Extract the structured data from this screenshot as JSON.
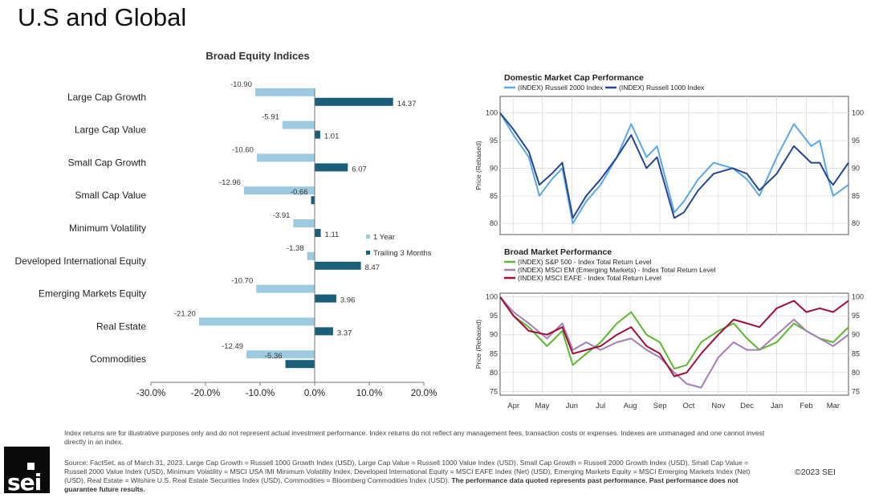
{
  "page": {
    "title": "U.S and Global",
    "disclaimer": "Index returns are for illustrative purposes only and do not represent actual investment performance. Index returns do not reflect any management fees, transaction costs or expenses. Indexes are unmanaged and one cannot invest directly in an index.",
    "source_text": "Source: FactSet, as of March 31, 2023. Large Cap Growth = Russell 1000 Growth Index (USD), Large Cap Value = Russell 1000 Value Index (USD), Small Cap Growth = Russell 2000 Growth Index (USD), Small Cap Value = Russell 2000 Value Index (USD), Minimum Volatility = MSCI USA IMI Minimum Volatility Index, Developed International Equity = MSCI EAFE Index (Net) (USD), Emerging Markets Equity = MSCI Emerging Markets Index (Net) (USD), Real Estate = Wilshire U.S. Real Estate Securities Index (USD), Commodities = Bloomberg Commodities Index (USD).",
    "source_bold": "The performance data quoted represents past performance. Past performance does not guarantee future results.",
    "copyright": "©2023 SEI",
    "logo_text": "sei"
  },
  "colors": {
    "one_year": "#9ecae1",
    "trailing": "#1b5e7a",
    "russell2000": "#5aa9e6",
    "russell1000": "#26459a",
    "sp500": "#5cb82e",
    "msci_em": "#a47eb5",
    "msci_eafe": "#a10e3c"
  },
  "chart_data": [
    {
      "type": "bar",
      "orientation": "horizontal",
      "title": "Broad Equity Indices",
      "categories": [
        "Large Cap Growth",
        "Large Cap Value",
        "Small Cap Growth",
        "Small Cap Value",
        "Minimum Volatility",
        "Developed International Equity",
        "Emerging Markets Equity",
        "Real Estate",
        "Commodities"
      ],
      "series": [
        {
          "name": "1 Year",
          "values": [
            -10.9,
            -5.91,
            -10.6,
            -12.96,
            -3.91,
            -1.38,
            -10.7,
            -21.2,
            -12.49
          ],
          "labels": [
            "-10.90",
            "-5.91",
            "-10.60",
            "-12.96",
            "-3.91",
            "-1.38",
            "-10.70",
            "-21.20",
            "-12.49"
          ]
        },
        {
          "name": "Trailing 3 Months",
          "values": [
            14.37,
            1.01,
            6.07,
            -0.66,
            1.11,
            8.47,
            3.96,
            3.37,
            -5.36
          ],
          "labels": [
            "14.37",
            "1.01",
            "6.07",
            "-0.66",
            "1.11",
            "8.47",
            "3.96",
            "3.37",
            "-5.36"
          ]
        }
      ],
      "xlim": [
        -30,
        20
      ],
      "xticks": [
        "-30.0%",
        "-20.0%",
        "-10.0%",
        "0.0%",
        "10.0%",
        "20.0%"
      ],
      "legend": "right",
      "grid": false
    },
    {
      "type": "line",
      "title": "Domestic Market Cap Performance",
      "ylabel": "Price (Rebased)",
      "ylim": [
        78,
        103
      ],
      "yticks": [
        "80",
        "85",
        "90",
        "95",
        "100"
      ],
      "grid": true,
      "legend": "top-left",
      "x_start": "2022-04-01",
      "x_end": "2023-03-31",
      "series": [
        {
          "name": "(INDEX) Russell 2000 Index",
          "x": [
            "2022-04-01",
            "2022-04-15",
            "2022-05-01",
            "2022-05-12",
            "2022-05-25",
            "2022-06-05",
            "2022-06-16",
            "2022-06-30",
            "2022-07-15",
            "2022-08-01",
            "2022-08-16",
            "2022-09-01",
            "2022-09-12",
            "2022-09-30",
            "2022-10-10",
            "2022-10-25",
            "2022-11-10",
            "2022-11-30",
            "2022-12-15",
            "2022-12-28",
            "2023-01-15",
            "2023-02-02",
            "2023-02-20",
            "2023-03-01",
            "2023-03-10",
            "2023-03-15",
            "2023-03-31"
          ],
          "y": [
            100,
            96,
            92,
            85,
            88,
            90,
            80,
            84,
            87,
            92,
            98,
            92,
            94,
            82,
            84,
            88,
            91,
            90,
            88,
            85,
            92,
            98,
            94,
            95,
            88,
            85,
            87
          ]
        },
        {
          "name": "(INDEX) Russell 1000 Index",
          "x": [
            "2022-04-01",
            "2022-04-15",
            "2022-05-01",
            "2022-05-12",
            "2022-05-25",
            "2022-06-05",
            "2022-06-16",
            "2022-06-30",
            "2022-07-15",
            "2022-08-01",
            "2022-08-16",
            "2022-09-01",
            "2022-09-12",
            "2022-09-30",
            "2022-10-10",
            "2022-10-25",
            "2022-11-10",
            "2022-11-30",
            "2022-12-15",
            "2022-12-28",
            "2023-01-15",
            "2023-02-02",
            "2023-02-20",
            "2023-03-01",
            "2023-03-10",
            "2023-03-15",
            "2023-03-31"
          ],
          "y": [
            100,
            97,
            93,
            87,
            89,
            91,
            81,
            85,
            88,
            92,
            96,
            90,
            92,
            81,
            82,
            86,
            89,
            90,
            89,
            86,
            89,
            94,
            91,
            91,
            88,
            87,
            91
          ]
        }
      ]
    },
    {
      "type": "line",
      "title": "Broad Market Performance",
      "ylabel": "Price (Rebased)",
      "ylim": [
        74,
        101
      ],
      "yticks": [
        "75",
        "80",
        "85",
        "90",
        "95",
        "100"
      ],
      "xticks": [
        "Apr",
        "May",
        "Jun",
        "Jul",
        "Aug",
        "Sep",
        "Oct",
        "Nov",
        "Dec",
        "Jan",
        "Feb",
        "Mar"
      ],
      "grid": true,
      "legend": "top-left",
      "x_start": "2022-04-01",
      "x_end": "2023-03-31",
      "series": [
        {
          "name": "(INDEX) S&P 500 - Index Total Return Level",
          "x": [
            "2022-04-01",
            "2022-04-15",
            "2022-05-01",
            "2022-05-20",
            "2022-06-05",
            "2022-06-16",
            "2022-06-30",
            "2022-07-15",
            "2022-08-01",
            "2022-08-16",
            "2022-09-01",
            "2022-09-15",
            "2022-09-30",
            "2022-10-13",
            "2022-10-28",
            "2022-11-15",
            "2022-12-01",
            "2022-12-15",
            "2022-12-28",
            "2023-01-15",
            "2023-02-02",
            "2023-02-15",
            "2023-03-01",
            "2023-03-15",
            "2023-03-31"
          ],
          "y": [
            100,
            95,
            92,
            87,
            91,
            82,
            85,
            88,
            93,
            96,
            90,
            88,
            81,
            82,
            88,
            91,
            93,
            89,
            86,
            88,
            93,
            91,
            89,
            88,
            92
          ]
        },
        {
          "name": "(INDEX) MSCI EM (Emerging Markets) - Index Total Return Level",
          "x": [
            "2022-04-01",
            "2022-04-15",
            "2022-05-01",
            "2022-05-20",
            "2022-06-05",
            "2022-06-16",
            "2022-06-30",
            "2022-07-15",
            "2022-08-01",
            "2022-08-16",
            "2022-09-01",
            "2022-09-15",
            "2022-09-30",
            "2022-10-13",
            "2022-10-28",
            "2022-11-15",
            "2022-12-01",
            "2022-12-15",
            "2022-12-28",
            "2023-01-15",
            "2023-02-02",
            "2023-02-15",
            "2023-03-01",
            "2023-03-15",
            "2023-03-31"
          ],
          "y": [
            100,
            96,
            93,
            89,
            93,
            86,
            88,
            86,
            88,
            89,
            86,
            84,
            80,
            77,
            76,
            84,
            88,
            86,
            86,
            90,
            94,
            91,
            89,
            87,
            90
          ]
        },
        {
          "name": "(INDEX) MSCI EAFE - Index Total Return Level",
          "x": [
            "2022-04-01",
            "2022-04-15",
            "2022-05-01",
            "2022-05-20",
            "2022-06-05",
            "2022-06-16",
            "2022-06-30",
            "2022-07-15",
            "2022-08-01",
            "2022-08-16",
            "2022-09-01",
            "2022-09-15",
            "2022-09-30",
            "2022-10-13",
            "2022-10-28",
            "2022-11-15",
            "2022-12-01",
            "2022-12-15",
            "2022-12-28",
            "2023-01-15",
            "2023-02-02",
            "2023-02-15",
            "2023-03-01",
            "2023-03-15",
            "2023-03-31"
          ],
          "y": [
            100,
            95,
            91,
            90,
            92,
            85,
            86,
            87,
            90,
            92,
            87,
            85,
            79,
            80,
            85,
            90,
            94,
            93,
            92,
            97,
            99,
            96,
            97,
            96,
            99
          ]
        }
      ]
    }
  ]
}
